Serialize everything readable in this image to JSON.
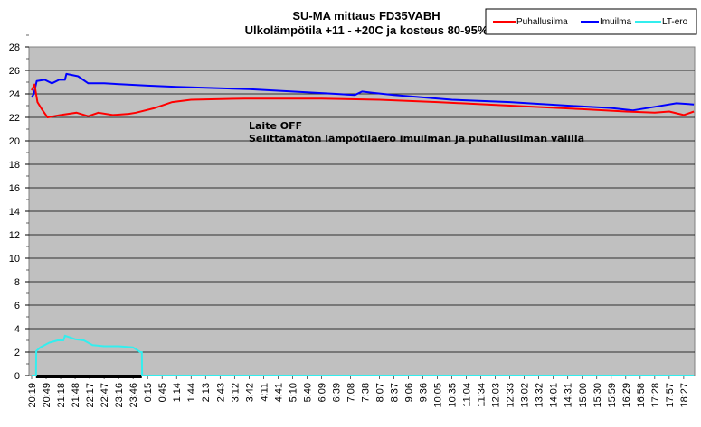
{
  "chart_data": {
    "type": "line",
    "title": [
      "SU-MA mittaus  FD35VABH",
      "Ulkolämpötila +11 - +20C ja kosteus 80-95%"
    ],
    "xlabel": "",
    "ylabel": "",
    "ylim": [
      0,
      28
    ],
    "yticks": [
      "0",
      "2",
      "4",
      "6",
      "8",
      "10",
      "12",
      "14",
      "16",
      "18",
      "20",
      "22",
      "24",
      "26",
      "28"
    ],
    "grid": true,
    "legend_position": "top-right",
    "categories": [
      "20:19",
      "20:49",
      "21:18",
      "21:48",
      "22:17",
      "22:47",
      "23:16",
      "23:46",
      "0:15",
      "0:45",
      "1:14",
      "1:44",
      "2:13",
      "2:43",
      "3:12",
      "3:42",
      "4:11",
      "4:41",
      "5:10",
      "5:40",
      "6:09",
      "6:39",
      "7:08",
      "7:38",
      "8:07",
      "8:37",
      "9:06",
      "9:36",
      "10:05",
      "10:35",
      "11:04",
      "11:34",
      "12:03",
      "12:33",
      "13:02",
      "13:32",
      "14:01",
      "14:31",
      "15:00",
      "15:30",
      "15:59",
      "16:29",
      "16:58",
      "17:28",
      "17:57",
      "18:27"
    ],
    "x_note": "series points are [category index, value]",
    "series": [
      {
        "name": "Puhallusilma",
        "color": "#ff0000",
        "points": [
          [
            0,
            24.3
          ],
          [
            0.2,
            24.8
          ],
          [
            0.4,
            23.3
          ],
          [
            0.7,
            22.7
          ],
          [
            1.1,
            22.0
          ],
          [
            2,
            22.2
          ],
          [
            3.1,
            22.4
          ],
          [
            3.9,
            22.1
          ],
          [
            4.6,
            22.4
          ],
          [
            5.6,
            22.2
          ],
          [
            6.7,
            22.3
          ],
          [
            7.2,
            22.4
          ],
          [
            8.5,
            22.8
          ],
          [
            9.7,
            23.3
          ],
          [
            11,
            23.5
          ],
          [
            14.7,
            23.6
          ],
          [
            20,
            23.6
          ],
          [
            24,
            23.5
          ],
          [
            28,
            23.3
          ],
          [
            33,
            23.0
          ],
          [
            38,
            22.7
          ],
          [
            41,
            22.5
          ],
          [
            43,
            22.4
          ],
          [
            44,
            22.5
          ],
          [
            45,
            22.2
          ],
          [
            45.7,
            22.5
          ]
        ]
      },
      {
        "name": "Imuilma",
        "color": "#0000ff",
        "points": [
          [
            0,
            23.7
          ],
          [
            0.15,
            24.0
          ],
          [
            0.35,
            25.1
          ],
          [
            0.9,
            25.2
          ],
          [
            1.4,
            24.9
          ],
          [
            1.9,
            25.2
          ],
          [
            2.3,
            25.2
          ],
          [
            2.4,
            25.7
          ],
          [
            3.2,
            25.5
          ],
          [
            3.9,
            24.9
          ],
          [
            5,
            24.9
          ],
          [
            8,
            24.7
          ],
          [
            10,
            24.6
          ],
          [
            15,
            24.4
          ],
          [
            18,
            24.2
          ],
          [
            21,
            24.0
          ],
          [
            22.3,
            23.9
          ],
          [
            22.8,
            24.2
          ],
          [
            23.5,
            24.1
          ],
          [
            25,
            23.9
          ],
          [
            29,
            23.5
          ],
          [
            33,
            23.3
          ],
          [
            37,
            23.0
          ],
          [
            40,
            22.8
          ],
          [
            41.5,
            22.6
          ],
          [
            43,
            22.9
          ],
          [
            44.5,
            23.2
          ],
          [
            45.7,
            23.1
          ]
        ]
      },
      {
        "name": "LT-ero",
        "color": "#33eeee",
        "points": [
          [
            0,
            0
          ],
          [
            0.3,
            0
          ],
          [
            0.32,
            2.1
          ],
          [
            0.6,
            2.4
          ],
          [
            1.2,
            2.8
          ],
          [
            1.8,
            3.0
          ],
          [
            2.2,
            3.0
          ],
          [
            2.3,
            3.4
          ],
          [
            3,
            3.1
          ],
          [
            3.6,
            3.0
          ],
          [
            4.2,
            2.6
          ],
          [
            5,
            2.5
          ],
          [
            6,
            2.5
          ],
          [
            7,
            2.4
          ],
          [
            7.5,
            2.0
          ],
          [
            7.6,
            2.0
          ],
          [
            7.62,
            0
          ],
          [
            45.7,
            0
          ]
        ]
      }
    ],
    "baseline_bar": {
      "from": 0.3,
      "to": 7.6,
      "value": 0,
      "color": "#000000"
    },
    "annotations": [
      "Laite OFF",
      "Selittämätön lämpötilaero imuilman ja puhallusilman välillä"
    ]
  }
}
